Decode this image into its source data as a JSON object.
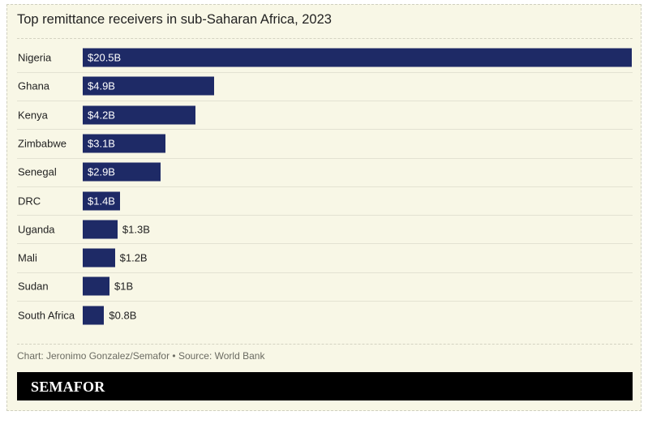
{
  "chart_data": {
    "type": "bar",
    "orientation": "horizontal",
    "title": "Top remittance receivers in sub-Saharan Africa, 2023",
    "categories": [
      "Nigeria",
      "Ghana",
      "Kenya",
      "Zimbabwe",
      "Senegal",
      "DRC",
      "Uganda",
      "Mali",
      "Sudan",
      "South Africa"
    ],
    "values": [
      20.5,
      4.9,
      4.2,
      3.1,
      2.9,
      1.4,
      1.3,
      1.2,
      1.0,
      0.8
    ],
    "labels": [
      "$20.5B",
      "$4.9B",
      "$4.2B",
      "$3.1B",
      "$2.9B",
      "$1.4B",
      "$1.3B",
      "$1.2B",
      "$1B",
      "$0.8B"
    ],
    "unit": "USD billions",
    "bar_color": "#1e2a66",
    "background_color": "#f8f7e6",
    "grid": false
  },
  "credit": "Chart: Jeronimo Gonzalez/Semafor • Source: World Bank",
  "logo_text": "SEMAFOR"
}
